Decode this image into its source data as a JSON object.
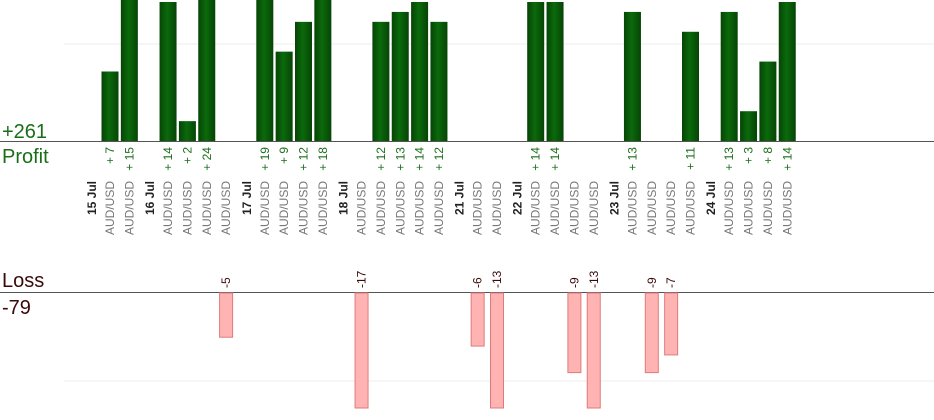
{
  "summary": {
    "profit_total": "+261",
    "profit_label": "Profit",
    "loss_label": "Loss",
    "loss_total": "-79"
  },
  "colors": {
    "profit_bar": "#0b6a0b",
    "profit_bar_dark": "#064406",
    "profit_text": "#1a6e1a",
    "loss_bar": "#ffb3b3",
    "loss_bar_border": "#e07a7a",
    "loss_text": "#3a0a0a",
    "axis": "#555555",
    "grid": "#eeeeee",
    "symbol_text": "#777777",
    "date_text": "#222222"
  },
  "chart_data": {
    "type": "bar",
    "symbol": "AUD/USD",
    "profit_scale_max": 14,
    "loss_scale_max": 13,
    "dates": [
      "15 Jul",
      "16 Jul",
      "17 Jul",
      "18 Jul",
      "21 Jul",
      "22 Jul",
      "23 Jul",
      "24 Jul"
    ],
    "trades": [
      {
        "date": "15 Jul",
        "symbol": "AUD/USD",
        "value": 7
      },
      {
        "date": "15 Jul",
        "symbol": "AUD/USD",
        "value": 15
      },
      {
        "date": "16 Jul",
        "symbol": "AUD/USD",
        "value": 14
      },
      {
        "date": "16 Jul",
        "symbol": "AUD/USD",
        "value": 2
      },
      {
        "date": "16 Jul",
        "symbol": "AUD/USD",
        "value": 24
      },
      {
        "date": "16 Jul",
        "symbol": "AUD/USD",
        "value": -5
      },
      {
        "date": "17 Jul",
        "symbol": "AUD/USD",
        "value": 19
      },
      {
        "date": "17 Jul",
        "symbol": "AUD/USD",
        "value": 9
      },
      {
        "date": "17 Jul",
        "symbol": "AUD/USD",
        "value": 12
      },
      {
        "date": "17 Jul",
        "symbol": "AUD/USD",
        "value": 18
      },
      {
        "date": "18 Jul",
        "symbol": "AUD/USD",
        "value": -17
      },
      {
        "date": "18 Jul",
        "symbol": "AUD/USD",
        "value": 12
      },
      {
        "date": "18 Jul",
        "symbol": "AUD/USD",
        "value": 13
      },
      {
        "date": "18 Jul",
        "symbol": "AUD/USD",
        "value": 14
      },
      {
        "date": "18 Jul",
        "symbol": "AUD/USD",
        "value": 12
      },
      {
        "date": "21 Jul",
        "symbol": "AUD/USD",
        "value": -6
      },
      {
        "date": "21 Jul",
        "symbol": "AUD/USD",
        "value": -13
      },
      {
        "date": "22 Jul",
        "symbol": "AUD/USD",
        "value": 14
      },
      {
        "date": "22 Jul",
        "symbol": "AUD/USD",
        "value": 14
      },
      {
        "date": "22 Jul",
        "symbol": "AUD/USD",
        "value": -9
      },
      {
        "date": "22 Jul",
        "symbol": "AUD/USD",
        "value": -13
      },
      {
        "date": "23 Jul",
        "symbol": "AUD/USD",
        "value": 13
      },
      {
        "date": "23 Jul",
        "symbol": "AUD/USD",
        "value": -9
      },
      {
        "date": "23 Jul",
        "symbol": "AUD/USD",
        "value": -7
      },
      {
        "date": "23 Jul",
        "symbol": "AUD/USD",
        "value": 11
      },
      {
        "date": "24 Jul",
        "symbol": "AUD/USD",
        "value": 13
      },
      {
        "date": "24 Jul",
        "symbol": "AUD/USD",
        "value": 3
      },
      {
        "date": "24 Jul",
        "symbol": "AUD/USD",
        "value": 8
      },
      {
        "date": "24 Jul",
        "symbol": "AUD/USD",
        "value": 14
      }
    ],
    "grid": true,
    "legend": "none"
  }
}
